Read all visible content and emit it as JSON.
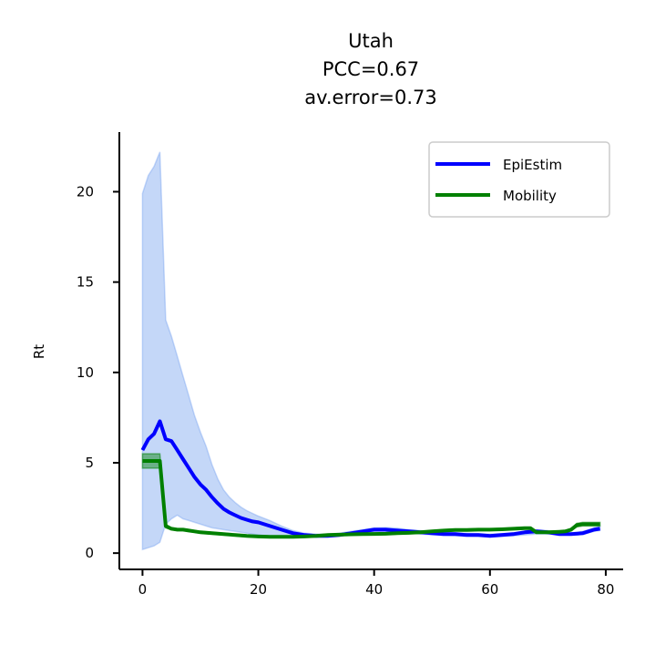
{
  "chart_data": {
    "type": "line",
    "title_lines": [
      "Utah",
      "PCC=0.67",
      "av.error=0.73"
    ],
    "xlabel": "",
    "ylabel": "Rt",
    "xlim": [
      -4,
      83
    ],
    "ylim": [
      -0.9,
      23.3
    ],
    "x_ticks": [
      0,
      20,
      40,
      60,
      80
    ],
    "y_ticks": [
      0,
      5,
      10,
      15,
      20
    ],
    "grid": false,
    "legend_position": "top-right",
    "series": [
      {
        "name": "EpiEstim",
        "color": "#0000ff",
        "band_color": "#6495ed",
        "x": [
          0,
          1,
          2,
          3,
          4,
          5,
          6,
          7,
          8,
          9,
          10,
          11,
          12,
          13,
          14,
          15,
          16,
          17,
          18,
          19,
          20,
          22,
          24,
          26,
          28,
          30,
          32,
          34,
          36,
          38,
          40,
          42,
          44,
          46,
          48,
          50,
          52,
          54,
          56,
          58,
          60,
          62,
          64,
          66,
          68,
          70,
          72,
          74,
          76,
          78,
          79
        ],
        "values": [
          5.7,
          6.3,
          6.6,
          7.3,
          6.3,
          6.2,
          5.7,
          5.2,
          4.7,
          4.2,
          3.8,
          3.5,
          3.1,
          2.75,
          2.45,
          2.25,
          2.1,
          1.95,
          1.85,
          1.75,
          1.7,
          1.5,
          1.3,
          1.1,
          1.0,
          0.95,
          0.95,
          1.0,
          1.1,
          1.2,
          1.3,
          1.3,
          1.25,
          1.2,
          1.15,
          1.1,
          1.05,
          1.05,
          1.0,
          1.0,
          0.95,
          1.0,
          1.05,
          1.15,
          1.2,
          1.15,
          1.05,
          1.05,
          1.1,
          1.3,
          1.35
        ],
        "lower": [
          0.2,
          0.3,
          0.4,
          0.6,
          1.6,
          1.9,
          2.1,
          1.9,
          1.8,
          1.7,
          1.6,
          1.5,
          1.4,
          1.35,
          1.3,
          1.25,
          1.2,
          1.15,
          1.1,
          1.05,
          1.0,
          0.95,
          0.9,
          0.9,
          0.88,
          0.88,
          0.9,
          0.95,
          1.0,
          1.05,
          1.1,
          1.12,
          1.12,
          1.1,
          1.05,
          1.0,
          0.98,
          0.96,
          0.94,
          0.92,
          0.9,
          0.92,
          0.95,
          1.0,
          1.05,
          1.05,
          1.0,
          1.0,
          1.02,
          1.2,
          1.25
        ],
        "upper": [
          19.9,
          20.9,
          21.4,
          22.2,
          12.9,
          12.0,
          10.9,
          9.8,
          8.7,
          7.6,
          6.7,
          5.9,
          4.9,
          4.1,
          3.5,
          3.1,
          2.8,
          2.55,
          2.35,
          2.2,
          2.05,
          1.8,
          1.5,
          1.25,
          1.1,
          1.05,
          1.05,
          1.1,
          1.2,
          1.3,
          1.4,
          1.42,
          1.38,
          1.3,
          1.25,
          1.2,
          1.15,
          1.12,
          1.1,
          1.08,
          1.05,
          1.08,
          1.12,
          1.22,
          1.3,
          1.25,
          1.15,
          1.12,
          1.2,
          1.4,
          1.5
        ]
      },
      {
        "name": "Mobility",
        "color": "#008000",
        "band_color": "#008000",
        "x": [
          0,
          1,
          2,
          3,
          4,
          5,
          6,
          7,
          8,
          9,
          10,
          12,
          14,
          16,
          18,
          20,
          22,
          24,
          26,
          28,
          30,
          32,
          34,
          36,
          38,
          40,
          42,
          44,
          46,
          48,
          50,
          52,
          54,
          56,
          58,
          60,
          62,
          64,
          66,
          67,
          68,
          70,
          72,
          73,
          74,
          75,
          76,
          78,
          79
        ],
        "values": [
          5.1,
          5.1,
          5.1,
          5.1,
          1.5,
          1.35,
          1.3,
          1.3,
          1.25,
          1.2,
          1.15,
          1.1,
          1.05,
          1.0,
          0.95,
          0.92,
          0.9,
          0.9,
          0.9,
          0.92,
          0.95,
          1.0,
          1.02,
          1.04,
          1.05,
          1.06,
          1.07,
          1.1,
          1.12,
          1.15,
          1.2,
          1.25,
          1.28,
          1.28,
          1.3,
          1.3,
          1.32,
          1.35,
          1.38,
          1.38,
          1.15,
          1.15,
          1.18,
          1.2,
          1.3,
          1.55,
          1.6,
          1.6,
          1.6
        ],
        "lower": [
          4.7,
          4.7,
          4.7,
          4.7,
          1.4,
          1.3,
          1.25,
          1.25,
          1.2,
          1.15,
          1.1,
          1.05,
          1.0,
          0.95,
          0.9,
          0.87,
          0.86,
          0.86,
          0.86,
          0.88,
          0.9,
          0.95,
          0.98,
          1.0,
          1.0,
          1.01,
          1.02,
          1.05,
          1.07,
          1.1,
          1.15,
          1.2,
          1.23,
          1.23,
          1.25,
          1.25,
          1.27,
          1.3,
          1.33,
          1.33,
          1.1,
          1.1,
          1.13,
          1.15,
          1.25,
          1.45,
          1.5,
          1.5,
          1.5
        ],
        "upper": [
          5.5,
          5.5,
          5.5,
          5.5,
          1.6,
          1.4,
          1.35,
          1.35,
          1.3,
          1.25,
          1.2,
          1.15,
          1.1,
          1.05,
          1.0,
          0.97,
          0.95,
          0.95,
          0.95,
          0.97,
          1.0,
          1.05,
          1.07,
          1.09,
          1.1,
          1.11,
          1.12,
          1.15,
          1.17,
          1.2,
          1.25,
          1.3,
          1.33,
          1.33,
          1.35,
          1.35,
          1.37,
          1.4,
          1.43,
          1.43,
          1.2,
          1.2,
          1.23,
          1.25,
          1.35,
          1.65,
          1.7,
          1.7,
          1.7
        ]
      }
    ]
  }
}
